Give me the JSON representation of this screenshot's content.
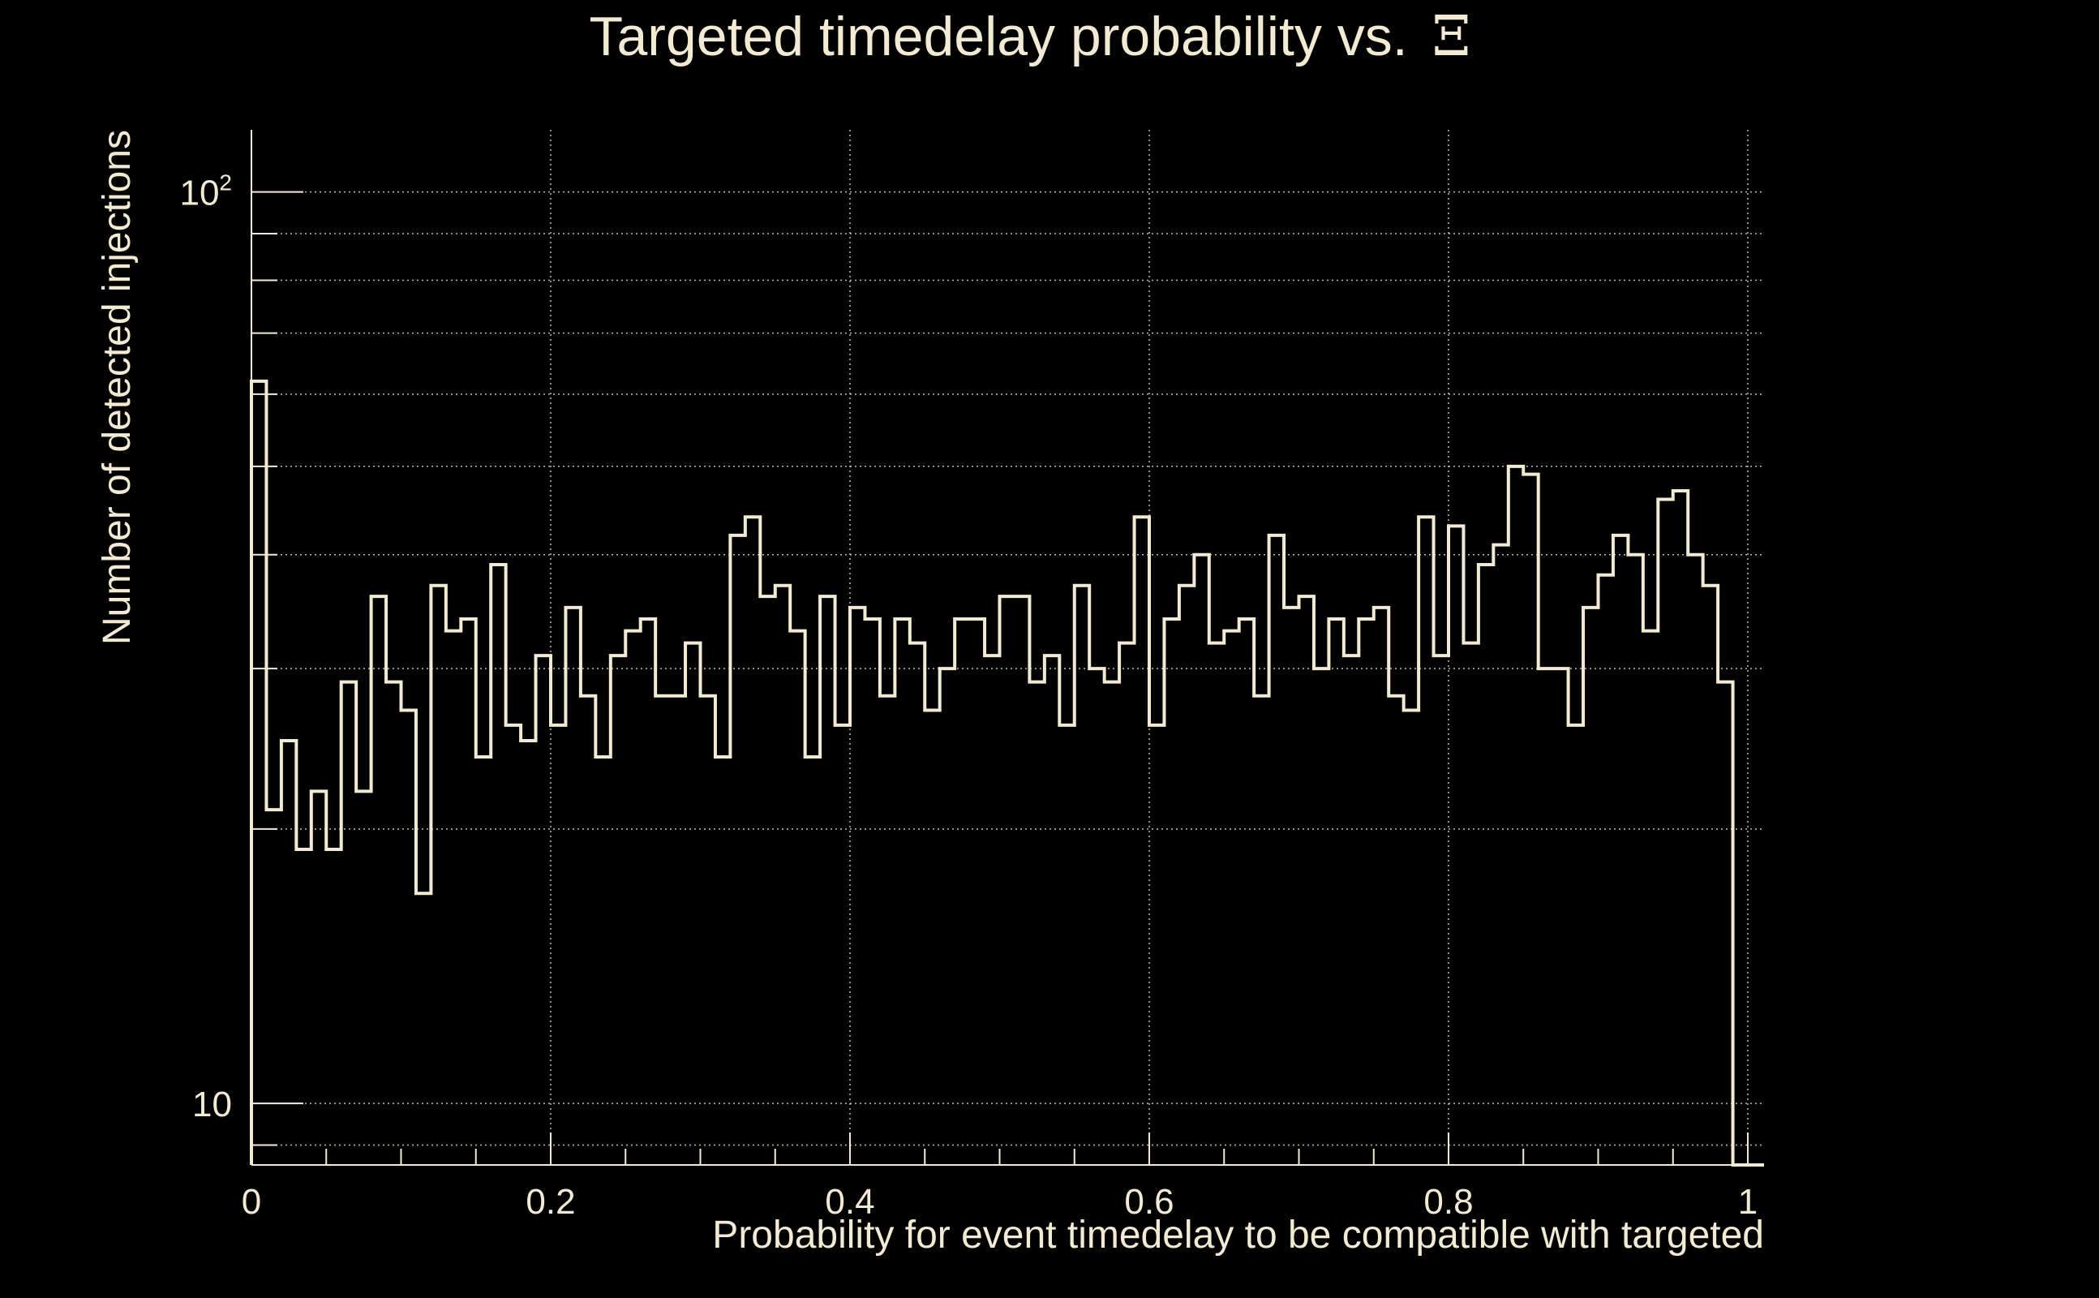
{
  "chart_data": {
    "type": "bar",
    "style": "step-histogram",
    "title": "Targeted timedelay probability vs.",
    "title_symbol": "Ξ",
    "xlabel": "Probability for event timedelay to be compatible with targeted",
    "ylabel": "Number of detected injections",
    "xlim": [
      0,
      1
    ],
    "ylim": [
      8.56,
      117
    ],
    "yscale": "log",
    "grid": true,
    "x_ticks": [
      "0",
      "0.2",
      "0.4",
      "0.6",
      "0.8",
      "1"
    ],
    "x_tick_values": [
      0,
      0.2,
      0.4,
      0.6,
      0.8,
      1
    ],
    "y_ticks": [
      {
        "value": 10,
        "label": "10"
      },
      {
        "value": 100,
        "label": "10",
        "sup": "2"
      }
    ],
    "bin_width": 0.01,
    "values": [
      62,
      21,
      25,
      19,
      22,
      19,
      29,
      22,
      36,
      29,
      27,
      17,
      37,
      33,
      34,
      24,
      39,
      26,
      25,
      31,
      26,
      35,
      28,
      24,
      31,
      33,
      34,
      28,
      28,
      32,
      28,
      24,
      42,
      44,
      36,
      37,
      33,
      24,
      36,
      26,
      35,
      34,
      28,
      34,
      32,
      27,
      30,
      34,
      34,
      31,
      36,
      36,
      29,
      31,
      26,
      37,
      30,
      29,
      32,
      44,
      26,
      34,
      37,
      40,
      32,
      33,
      34,
      28,
      42,
      35,
      36,
      30,
      34,
      31,
      34,
      35,
      28,
      27,
      44,
      31,
      43,
      32,
      39,
      41,
      50,
      49,
      30,
      30,
      26,
      35,
      38,
      42,
      40,
      33,
      46,
      47,
      40,
      37,
      29,
      0
    ],
    "color": "#f3ead3"
  }
}
